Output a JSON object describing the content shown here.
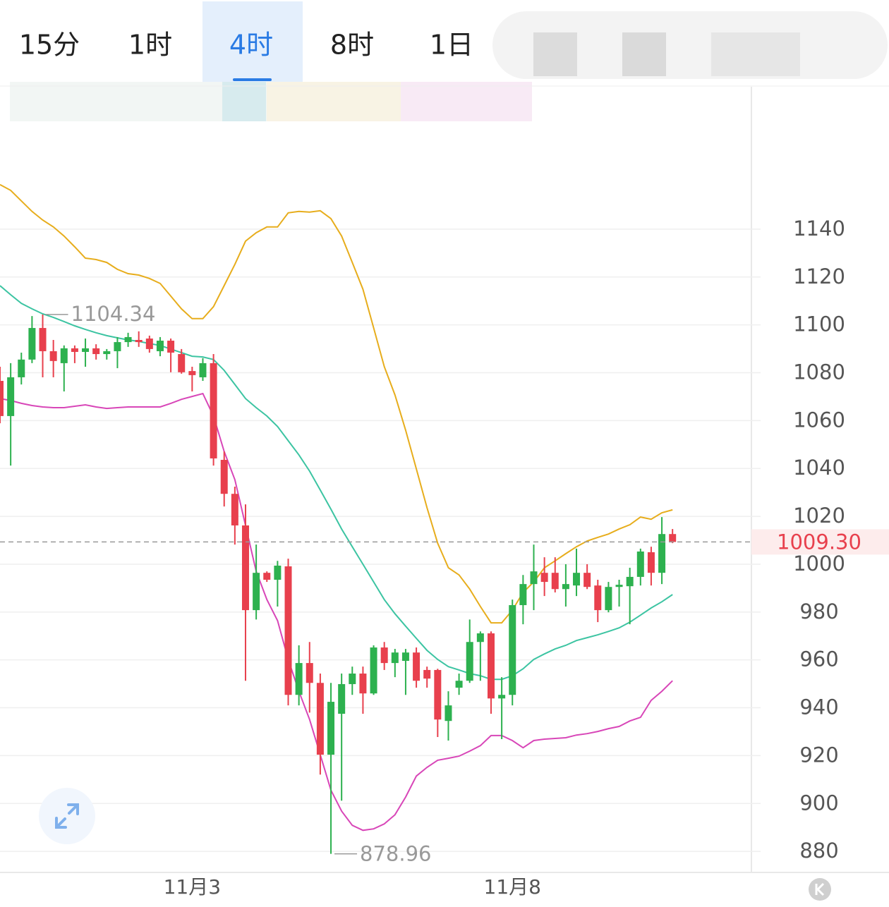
{
  "tabs": [
    "15分",
    "1时",
    "4时",
    "8时",
    "1日"
  ],
  "selected_tab": 2,
  "chart_data": {
    "type": "candlestick",
    "categories": [
      null,
      null,
      null,
      null,
      null,
      null,
      null,
      null,
      null,
      null,
      null,
      null,
      null,
      null,
      null,
      null,
      null,
      null,
      "11月3",
      null,
      null,
      null,
      null,
      null,
      null,
      null,
      null,
      null,
      null,
      null,
      null,
      null,
      null,
      null,
      null,
      null,
      null,
      null,
      null,
      null,
      null,
      null,
      null,
      null,
      null,
      null,
      null,
      null,
      "11月8",
      null,
      null,
      null,
      null,
      null,
      null,
      null,
      null,
      null,
      null,
      null,
      null,
      null,
      null,
      null
    ],
    "open": [
      1076.6,
      1061.9,
      1078.1,
      1085.5,
      1098.7,
      1089,
      1084,
      1090.2,
      1088.7,
      1090.2,
      1087.8,
      1089,
      1092.8,
      1093.7,
      1094.3,
      1089,
      1093.4,
      1087.8,
      1080.7,
      1078.1,
      1084,
      1043.6,
      1029.4,
      1016.2,
      980.8,
      996.4,
      993.5,
      999.1,
      945.4,
      958.7,
      950.4,
      920.4,
      937.5,
      949.9,
      954.3,
      946,
      965.2,
      958.7,
      959.6,
      963.1,
      955.8,
      955.8,
      934.5,
      948.4,
      951.3,
      967.5,
      971.1,
      943.9,
      945.4,
      982.9,
      991.7,
      996.4,
      996.4,
      989.6,
      991.1,
      996.4,
      991.1,
      980.8,
      990.5,
      990.8,
      994.7,
      1005,
      996.4,
      1012.6
    ],
    "high": [
      1082.5,
      1084,
      1088.4,
      1103.7,
      1104.34,
      1093.7,
      1091.4,
      1091.4,
      1094.3,
      1091.9,
      1089.9,
      1094.9,
      1096.7,
      1097.3,
      1095.5,
      1094.9,
      1094.3,
      1089.9,
      1082.5,
      1086.1,
      1087.8,
      1047.1,
      1032.4,
      1025,
      1008.2,
      997,
      1001.4,
      1002.3,
      966.1,
      967.5,
      954.3,
      950.4,
      954.3,
      957.2,
      957.2,
      966.1,
      967.5,
      964.6,
      964.6,
      965.2,
      957.2,
      956.3,
      946.9,
      954.3,
      976.9,
      971.9,
      971.9,
      952.8,
      985.2,
      995.5,
      1008.2,
      1002.9,
      1002.9,
      1000,
      1006.5,
      1000,
      993.5,
      992.6,
      993.5,
      998.5,
      1006.5,
      1007.3,
      1019.7,
      1014.7
    ],
    "low": [
      1058.9,
      1041.2,
      1075.1,
      1084,
      1078.1,
      1078.1,
      1072.2,
      1084,
      1082.5,
      1085.5,
      1085.5,
      1081.9,
      1090.8,
      1090.8,
      1088.4,
      1086.9,
      1080.2,
      1079.6,
      1072.2,
      1076.6,
      1041.2,
      1024.1,
      1008.2,
      951.3,
      976.9,
      992.6,
      982.3,
      941,
      941,
      938,
      912.1,
      878.96,
      901.2,
      945.4,
      937.5,
      945.4,
      955.8,
      952.8,
      945.4,
      948.4,
      948.4,
      927.8,
      926.3,
      945.4,
      950.4,
      951.3,
      937.5,
      926.9,
      941,
      974.9,
      980.8,
      986.7,
      988.2,
      982.3,
      986.7,
      989.6,
      975.8,
      979.9,
      982.3,
      974.9,
      991.1,
      991.1,
      991.7,
      1008.8
    ],
    "close": [
      1061.9,
      1078.1,
      1085.5,
      1098.7,
      1089,
      1084.9,
      1090.2,
      1088.7,
      1090.2,
      1087.8,
      1089,
      1092.8,
      1094.9,
      1092.8,
      1089.9,
      1093.4,
      1088.4,
      1080.2,
      1079,
      1084,
      1044.2,
      1029.4,
      1016.2,
      980.8,
      996.4,
      993.5,
      999.4,
      945.4,
      958.7,
      950.4,
      920.4,
      942.5,
      949.9,
      954.3,
      946,
      965.2,
      958.7,
      963.1,
      963.1,
      951.3,
      952.2,
      935.1,
      941,
      951.3,
      967.5,
      971.1,
      943.9,
      945.4,
      982.9,
      991.7,
      997,
      992.6,
      989.6,
      991.7,
      996.4,
      990.5,
      980.8,
      990.5,
      991.4,
      994.7,
      1005.3,
      996.4,
      1012.6,
      1009.3
    ],
    "up_color": "#2db14f",
    "down_color": "#e8404d",
    "lines": [
      {
        "color": "#e7ad1c",
        "values": [
          1158.6,
          1156.2,
          1151.8,
          1147.4,
          1143.8,
          1140.9,
          1137.1,
          1132.6,
          1127.9,
          1127.3,
          1126.1,
          1123.2,
          1121.4,
          1120.8,
          1119.4,
          1117.3,
          1112,
          1106.7,
          1102.6,
          1102.6,
          1107.6,
          1116.4,
          1125.3,
          1135,
          1138.5,
          1140.9,
          1140.9,
          1146.8,
          1147.4,
          1147.1,
          1147.7,
          1144.4,
          1137.1,
          1126.1,
          1114.9,
          1098.7,
          1082.5,
          1070.7,
          1056,
          1039.8,
          1023.6,
          1008.8,
          998.5,
          995.5,
          989.6,
          982.3,
          975.5,
          975.5,
          980.8,
          988.2,
          992.6,
          998.5,
          1001.4,
          1004.4,
          1007.3,
          1009.7,
          1011.2,
          1012.6,
          1014.7,
          1016.5,
          1019.7,
          1018.8,
          1021.5,
          1022.7
        ]
      },
      {
        "color": "#3cc4a2",
        "values": [
          1116.4,
          1112.6,
          1109,
          1106.7,
          1104.6,
          1103.1,
          1101.4,
          1099.6,
          1098.1,
          1096.7,
          1095.5,
          1094.6,
          1093.7,
          1093.1,
          1092.2,
          1091.4,
          1089.9,
          1088.4,
          1086.9,
          1086.6,
          1085.5,
          1081,
          1075.1,
          1069.2,
          1065.4,
          1061.9,
          1057.5,
          1051.6,
          1045.7,
          1038.9,
          1031,
          1023,
          1014.7,
          1007.3,
          1000,
          992.6,
          985.2,
          979.3,
          974.1,
          969,
          964,
          960.2,
          957.2,
          955.8,
          954.3,
          953.4,
          951.9,
          951.9,
          953.4,
          956.3,
          960.2,
          962.5,
          964.6,
          966.1,
          968.1,
          969.3,
          970.5,
          971.9,
          973.4,
          975.8,
          978.7,
          981.7,
          984.3,
          987.3
        ]
      },
      {
        "color": "#d846b8",
        "values": [
          1069.2,
          1068.4,
          1067.2,
          1066.3,
          1065.7,
          1065.4,
          1065.4,
          1066,
          1066.6,
          1065.7,
          1065.1,
          1065.4,
          1065.7,
          1065.7,
          1065.7,
          1065.7,
          1067.2,
          1068.9,
          1070.1,
          1071.3,
          1061.9,
          1047.1,
          1035.3,
          1016.2,
          997,
          985.2,
          976.4,
          960.2,
          946.9,
          935.1,
          920.4,
          905.6,
          896.8,
          890.9,
          888.8,
          889.4,
          891.5,
          895.3,
          902.7,
          911.5,
          915.1,
          918.1,
          918.9,
          919.8,
          921.9,
          924.2,
          928.4,
          928.4,
          926.3,
          923.3,
          926.3,
          926.9,
          927.2,
          927.5,
          928.6,
          929.2,
          930.1,
          931.3,
          932.2,
          934.5,
          936,
          943.1,
          946.9,
          951.3
        ]
      }
    ],
    "last_price": {
      "value": 1009.3,
      "label": "1009.30"
    },
    "ylim": [
      871.2,
      1199.5
    ],
    "yticks": [
      880,
      900,
      920,
      940,
      960,
      980,
      1000,
      1020,
      1040,
      1060,
      1080,
      1100,
      1120,
      1140
    ],
    "grid": true
  }
}
